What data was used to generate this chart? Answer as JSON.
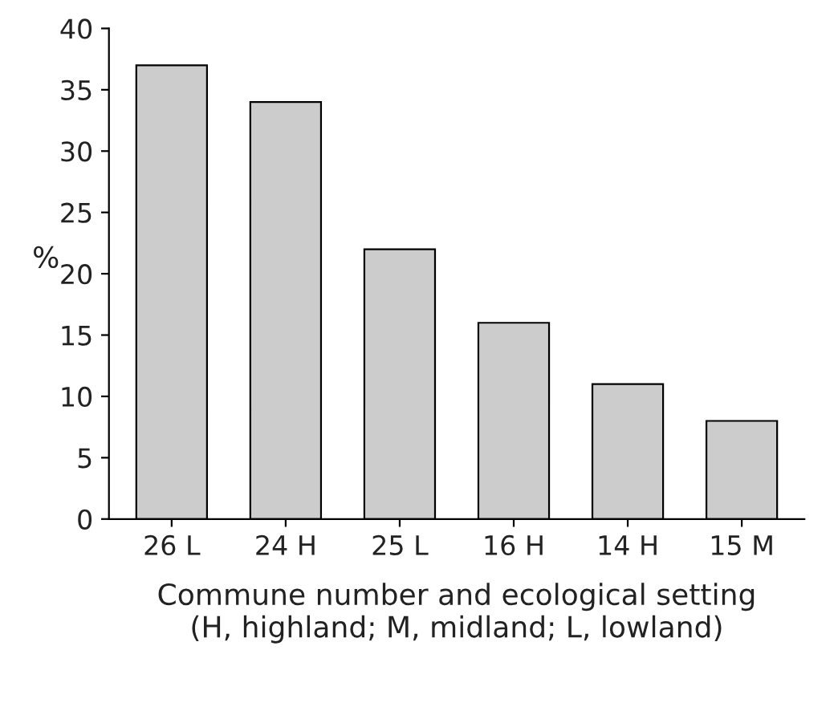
{
  "chart_data": {
    "type": "bar",
    "xlabel": "Commune number and ecological setting\n(H, highland; M, midland; L, lowland)",
    "ylabel": "%",
    "categories": [
      "26 L",
      "24 H",
      "25 L",
      "16 H",
      "14 H",
      "15 M"
    ],
    "values": [
      37,
      34,
      22,
      16,
      11,
      8
    ],
    "color": "#cccccc",
    "ylim": [
      0,
      40
    ],
    "yticks": [
      0,
      5,
      10,
      15,
      20,
      25,
      30,
      35,
      40
    ],
    "grid": false,
    "legend": false
  }
}
